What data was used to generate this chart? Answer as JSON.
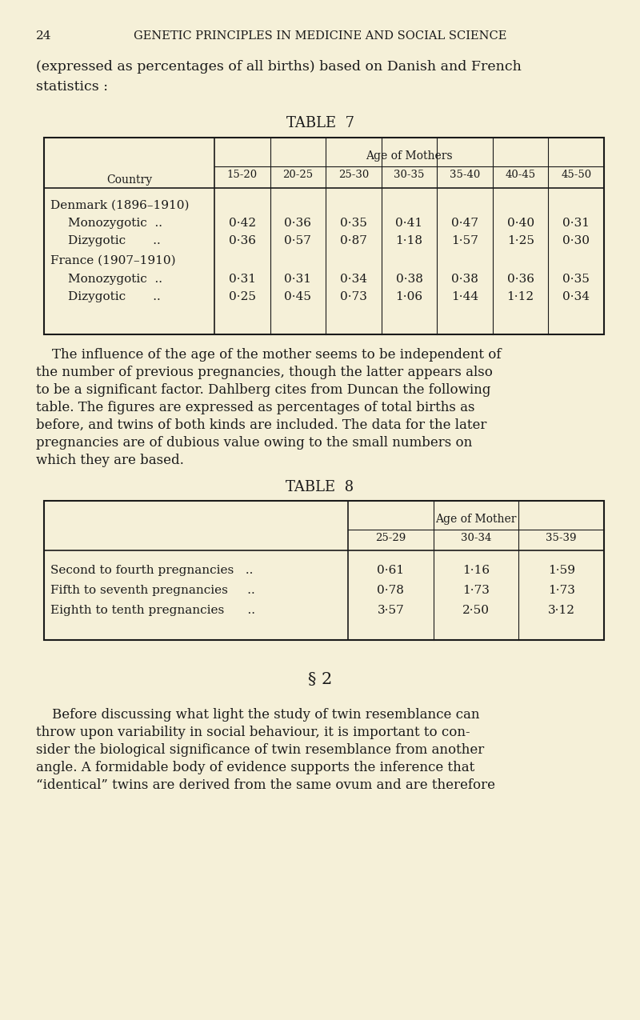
{
  "bg_color": "#f5f0d8",
  "text_color": "#1a1a1a",
  "page_number": "24",
  "header": "GENETIC PRINCIPLES IN MEDICINE AND SOCIAL SCIENCE",
  "intro_text_line1": "(expressed as percentages of all births) based on Danish and French",
  "intro_text_line2": "statistics :",
  "table7_title": "TABLE  7",
  "table7_col_header": "Age of Mothers",
  "table7_row_label": "Country",
  "table7_age_cols": [
    "15-20",
    "20-25",
    "25-30",
    "30-35",
    "35-40",
    "40-45",
    "45-50"
  ],
  "table7_data": [
    {
      "label": "Denmark (1896–1910)",
      "values": [],
      "indent": false
    },
    {
      "label": "Monozygotic  ..",
      "values": [
        "0·42",
        "0·36",
        "0·35",
        "0·41",
        "0·47",
        "0·40",
        "0·31"
      ],
      "indent": true
    },
    {
      "label": "Dizygotic       ..",
      "values": [
        "0·36",
        "0·57",
        "0·87",
        "1·18",
        "1·57",
        "1·25",
        "0·30"
      ],
      "indent": true
    },
    {
      "label": "France (1907–1910)",
      "values": [],
      "indent": false
    },
    {
      "label": "Monozygotic  ..",
      "values": [
        "0·31",
        "0·31",
        "0·34",
        "0·38",
        "0·38",
        "0·36",
        "0·35"
      ],
      "indent": true
    },
    {
      "label": "Dizygotic       ..",
      "values": [
        "0·25",
        "0·45",
        "0·73",
        "1·06",
        "1·44",
        "1·12",
        "0·34"
      ],
      "indent": true
    }
  ],
  "para1_lines": [
    "The influence of the age of the mother seems to be independent of",
    "the number of previous pregnancies, though the latter appears also",
    "to be a significant factor. Dahlberg cites from Duncan the following",
    "table. The figures are expressed as percentages of total births as",
    "before, and twins of both kinds are included. The data for the later",
    "pregnancies are of dubious value owing to the small numbers on",
    "which they are based."
  ],
  "table8_title": "TABLE  8",
  "table8_col_header": "Age of Mother",
  "table8_age_cols": [
    "25-29",
    "30-34",
    "35-39"
  ],
  "table8_data": [
    {
      "label": "Second to fourth pregnancies   ..",
      "values": [
        "0·61",
        "1·16",
        "1·59"
      ]
    },
    {
      "label": "Fifth to seventh pregnancies     ..",
      "values": [
        "0·78",
        "1·73",
        "1·73"
      ]
    },
    {
      "label": "Eighth to tenth pregnancies      ..",
      "values": [
        "3·57",
        "2·50",
        "3·12"
      ]
    }
  ],
  "section_header": "§ 2",
  "para2_lines": [
    "Before discussing what light the study of twin resemblance can",
    "throw upon variability in social behaviour, it is important to con-",
    "sider the biological significance of twin resemblance from another",
    "angle. A formidable body of evidence supports the inference that",
    "“identical” twins are derived from the same ovum and are therefore"
  ]
}
